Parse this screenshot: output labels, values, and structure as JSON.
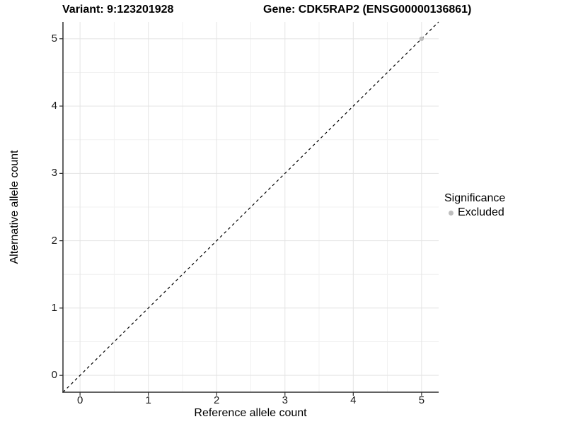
{
  "chart_data": {
    "type": "scatter",
    "title_left": "Variant: 9:123201928",
    "title_right": "Gene: CDK5RAP2 (ENSG00000136861)",
    "xlabel": "Reference allele count",
    "ylabel": "Alternative allele count",
    "xlim": [
      -0.25,
      5.25
    ],
    "ylim": [
      -0.25,
      5.25
    ],
    "xticks": [
      0,
      1,
      2,
      3,
      4,
      5
    ],
    "yticks": [
      0,
      1,
      2,
      3,
      4,
      5
    ],
    "grid": "major and minor, minor at 0.5 intervals",
    "reference_line": {
      "equation": "y = x",
      "style": "dashed",
      "color": "#000000"
    },
    "series": [
      {
        "name": "Excluded",
        "color": "#bebebe",
        "points": [
          {
            "x": 5,
            "y": 5
          }
        ]
      }
    ],
    "legend": {
      "title": "Significance",
      "position": "right",
      "entries": [
        {
          "label": "Excluded",
          "color": "#bebebe"
        }
      ]
    }
  },
  "colors": {
    "background": "#ffffff",
    "axis_line": "#2f2f2f",
    "tick_mark": "#2f2f2f",
    "tick_label": "#1a1a1a",
    "grid_major": "#e4e4e4",
    "grid_minor": "#f1f1f1",
    "dashed_line": "#000000",
    "point": "#bebebe"
  }
}
